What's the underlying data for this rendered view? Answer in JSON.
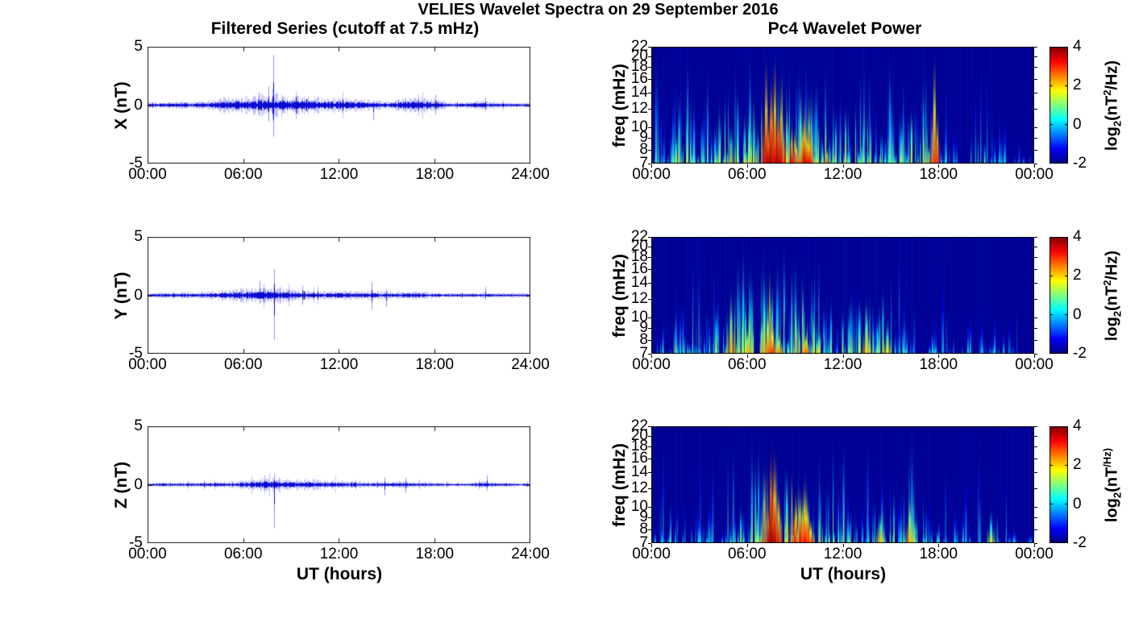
{
  "figure": {
    "title": "VELIES Wavelet Spectra on 29 September 2016",
    "left_column_title": "Filtered Series (cutoff at 7.5 mHz)",
    "right_column_title": "Pc4 Wavelet Power",
    "xlabel": "UT (hours)",
    "colors": {
      "line_blue": "#0000E0",
      "spike_blue": "#6E6EFF",
      "heatmap_background": "#000093",
      "axis_color": "#1a1a1a"
    },
    "colorbar": {
      "tick_values": [
        4,
        2,
        0,
        -2
      ],
      "range": [
        -2,
        4
      ],
      "colormap": "jet",
      "label": {
        "pre": "log",
        "sub": "2",
        "mid": "(nT",
        "sup": "2",
        "suf": "/Hz)"
      }
    }
  },
  "chart_data": [
    {
      "id": "filtered-series-x",
      "type": "line",
      "component": "X",
      "ylabel": "X (nT)",
      "ylim": [
        -5,
        5
      ],
      "ytick_values": [
        5,
        0,
        -5
      ],
      "xlim_hours": [
        0,
        24
      ],
      "xtick_labels": [
        "00:00",
        "06:00",
        "12:00",
        "18:00",
        "24:00"
      ],
      "noise_envelope_nT": [
        0.12,
        0.15,
        0.18,
        0.15,
        0.22,
        0.33,
        0.38,
        0.45,
        0.5,
        0.4,
        0.38,
        0.3,
        0.32,
        0.28,
        0.22,
        0.18,
        0.3,
        0.33,
        0.28,
        0.12,
        0.12,
        0.2,
        0.12,
        0.12,
        0.1
      ],
      "spikes": [
        {
          "t_hours": 7.92,
          "peak_nT": 4.3,
          "trough_nT": -2.7
        },
        {
          "t_hours": 7.6,
          "peak_nT": 1.6,
          "trough_nT": -1.4
        },
        {
          "t_hours": 7.0,
          "peak_nT": 1.1,
          "trough_nT": -0.9
        },
        {
          "t_hours": 14.2,
          "peak_nT": 0.4,
          "trough_nT": -1.3
        },
        {
          "t_hours": 18.1,
          "peak_nT": 0.9,
          "trough_nT": -0.8
        },
        {
          "t_hours": 21.2,
          "peak_nT": 0.6,
          "trough_nT": -0.5
        }
      ]
    },
    {
      "id": "filtered-series-y",
      "type": "line",
      "component": "Y",
      "ylabel": "Y (nT)",
      "ylim": [
        -5,
        5
      ],
      "ytick_values": [
        5,
        0,
        -5
      ],
      "xlim_hours": [
        0,
        24
      ],
      "xtick_labels": [
        "00:00",
        "06:00",
        "12:00",
        "18:00",
        "24:00"
      ],
      "noise_envelope_nT": [
        0.1,
        0.12,
        0.15,
        0.12,
        0.18,
        0.25,
        0.3,
        0.32,
        0.35,
        0.25,
        0.22,
        0.18,
        0.2,
        0.18,
        0.18,
        0.15,
        0.15,
        0.18,
        0.12,
        0.1,
        0.1,
        0.12,
        0.1,
        0.1,
        0.08
      ],
      "spikes": [
        {
          "t_hours": 7.95,
          "peak_nT": 2.2,
          "trough_nT": -3.8
        },
        {
          "t_hours": 7.05,
          "peak_nT": 1.25,
          "trough_nT": -0.7
        },
        {
          "t_hours": 9.7,
          "peak_nT": 0.8,
          "trough_nT": -0.8
        },
        {
          "t_hours": 14.1,
          "peak_nT": 1.1,
          "trough_nT": -1.2
        },
        {
          "t_hours": 15.0,
          "peak_nT": 0.5,
          "trough_nT": -1.0
        },
        {
          "t_hours": 21.2,
          "peak_nT": 0.7,
          "trough_nT": -0.4
        }
      ]
    },
    {
      "id": "filtered-series-z",
      "type": "line",
      "component": "Z",
      "ylabel": "Z (nT)",
      "ylim": [
        -5,
        5
      ],
      "ytick_values": [
        5,
        0,
        -5
      ],
      "xlim_hours": [
        0,
        24
      ],
      "xtick_labels": [
        "00:00",
        "06:00",
        "12:00",
        "18:00",
        "24:00"
      ],
      "noise_envelope_nT": [
        0.08,
        0.1,
        0.1,
        0.1,
        0.12,
        0.15,
        0.18,
        0.25,
        0.3,
        0.22,
        0.25,
        0.18,
        0.18,
        0.15,
        0.12,
        0.12,
        0.15,
        0.12,
        0.1,
        0.08,
        0.08,
        0.15,
        0.1,
        0.08,
        0.08
      ],
      "spikes": [
        {
          "t_hours": 7.95,
          "peak_nT": 0.9,
          "trough_nT": -3.7
        },
        {
          "t_hours": 14.9,
          "peak_nT": 0.6,
          "trough_nT": -0.9
        },
        {
          "t_hours": 16.2,
          "peak_nT": 0.6,
          "trough_nT": -0.7
        },
        {
          "t_hours": 21.3,
          "peak_nT": 0.8,
          "trough_nT": -0.5
        }
      ]
    },
    {
      "id": "wavelet-power-x",
      "type": "heatmap",
      "component": "X",
      "ylabel": "freq (mHz)",
      "yscale": "log",
      "ylim_mHz": [
        7,
        22
      ],
      "ytick_values": [
        7,
        8,
        9,
        10,
        12,
        14,
        16,
        18,
        20,
        22
      ],
      "xtick_labels": [
        "00:00",
        "06:00",
        "12:00",
        "18:00",
        "00:00"
      ],
      "background_log2_power": -2,
      "hourly_streak_density": [
        0.5,
        0.6,
        0.55,
        0.5,
        0.6,
        0.7,
        0.8,
        0.95,
        0.9,
        0.85,
        0.7,
        0.65,
        0.6,
        0.55,
        0.5,
        0.5,
        0.55,
        0.5,
        0.2,
        0.15,
        0.2,
        0.25,
        0.15,
        0.1
      ],
      "hourly_peak_log2_power": [
        1.0,
        1.5,
        1.5,
        1.0,
        2.0,
        2.0,
        2.5,
        4.0,
        3.5,
        3.5,
        2.5,
        2.5,
        2.0,
        2.0,
        1.5,
        1.5,
        2.0,
        3.0,
        0.5,
        0.5,
        1.0,
        1.0,
        0.5,
        0.3
      ],
      "events": [
        {
          "t_hours": 7.2,
          "f_top_mHz": 22,
          "log2_power": 3.4
        },
        {
          "t_hours": 7.5,
          "f_top_mHz": 16,
          "log2_power": 4.0
        },
        {
          "t_hours": 7.75,
          "f_top_mHz": 22,
          "log2_power": 3.2
        },
        {
          "t_hours": 7.95,
          "f_top_mHz": 12,
          "log2_power": 4.0
        },
        {
          "t_hours": 8.15,
          "f_top_mHz": 18,
          "log2_power": 3.4
        },
        {
          "t_hours": 9.6,
          "f_top_mHz": 12,
          "log2_power": 3.6
        },
        {
          "t_hours": 9.9,
          "f_top_mHz": 10,
          "log2_power": 3.3
        },
        {
          "t_hours": 17.75,
          "f_top_mHz": 22,
          "log2_power": 3.0
        }
      ]
    },
    {
      "id": "wavelet-power-y",
      "type": "heatmap",
      "component": "Y",
      "ylabel": "freq (mHz)",
      "yscale": "log",
      "ylim_mHz": [
        7,
        22
      ],
      "ytick_values": [
        7,
        8,
        9,
        10,
        12,
        14,
        16,
        18,
        20,
        22
      ],
      "xtick_labels": [
        "00:00",
        "06:00",
        "12:00",
        "18:00",
        "00:00"
      ],
      "background_log2_power": -2,
      "hourly_streak_density": [
        0.35,
        0.4,
        0.45,
        0.35,
        0.5,
        0.7,
        0.8,
        0.85,
        0.8,
        0.75,
        0.6,
        0.5,
        0.5,
        0.55,
        0.5,
        0.3,
        0.2,
        0.25,
        0.15,
        0.1,
        0.15,
        0.15,
        0.1,
        0.08
      ],
      "hourly_peak_log2_power": [
        0.5,
        1.0,
        1.0,
        0.5,
        1.5,
        2.0,
        2.5,
        3.0,
        2.5,
        2.5,
        2.0,
        1.5,
        1.5,
        2.0,
        1.5,
        1.0,
        0.5,
        1.0,
        0.3,
        0.3,
        0.5,
        0.3,
        0.3,
        0.2
      ],
      "events": [
        {
          "t_hours": 5.0,
          "f_top_mHz": 14,
          "log2_power": 2.2
        },
        {
          "t_hours": 7.3,
          "f_top_mHz": 12,
          "log2_power": 2.6
        },
        {
          "t_hours": 7.6,
          "f_top_mHz": 10,
          "log2_power": 3.0
        },
        {
          "t_hours": 8.0,
          "f_top_mHz": 9,
          "log2_power": 2.4
        },
        {
          "t_hours": 9.7,
          "f_top_mHz": 9,
          "log2_power": 2.8
        },
        {
          "t_hours": 13.5,
          "f_top_mHz": 12,
          "log2_power": 2.0
        },
        {
          "t_hours": 14.8,
          "f_top_mHz": 10,
          "log2_power": 1.8
        }
      ]
    },
    {
      "id": "wavelet-power-z",
      "type": "heatmap",
      "component": "Z",
      "ylabel": "freq (mHz)",
      "yscale": "log",
      "ylim_mHz": [
        7,
        22
      ],
      "ytick_values": [
        7,
        8,
        9,
        10,
        12,
        14,
        16,
        18,
        20,
        22
      ],
      "xtick_labels": [
        "00:00",
        "06:00",
        "12:00",
        "18:00",
        "00:00"
      ],
      "background_log2_power": -2,
      "hourly_streak_density": [
        0.3,
        0.35,
        0.3,
        0.3,
        0.35,
        0.5,
        0.6,
        0.85,
        0.7,
        0.65,
        0.55,
        0.5,
        0.45,
        0.4,
        0.45,
        0.4,
        0.5,
        0.35,
        0.2,
        0.1,
        0.15,
        0.2,
        0.15,
        0.1
      ],
      "hourly_peak_log2_power": [
        0.5,
        1.0,
        0.5,
        0.5,
        1.0,
        1.5,
        2.0,
        4.0,
        3.0,
        3.5,
        2.0,
        1.5,
        1.5,
        1.0,
        2.0,
        1.5,
        2.0,
        1.0,
        0.5,
        0.3,
        0.5,
        1.0,
        0.5,
        0.3
      ],
      "events": [
        {
          "t_hours": 7.5,
          "f_top_mHz": 20,
          "log2_power": 4.0
        },
        {
          "t_hours": 7.7,
          "f_top_mHz": 18,
          "log2_power": 3.6
        },
        {
          "t_hours": 9.7,
          "f_top_mHz": 12,
          "log2_power": 3.2
        },
        {
          "t_hours": 10.0,
          "f_top_mHz": 9,
          "log2_power": 2.8
        },
        {
          "t_hours": 14.4,
          "f_top_mHz": 10,
          "log2_power": 2.0
        },
        {
          "t_hours": 16.2,
          "f_top_mHz": 12,
          "log2_power": 2.2
        },
        {
          "t_hours": 21.3,
          "f_top_mHz": 10,
          "log2_power": 1.5
        }
      ]
    }
  ]
}
